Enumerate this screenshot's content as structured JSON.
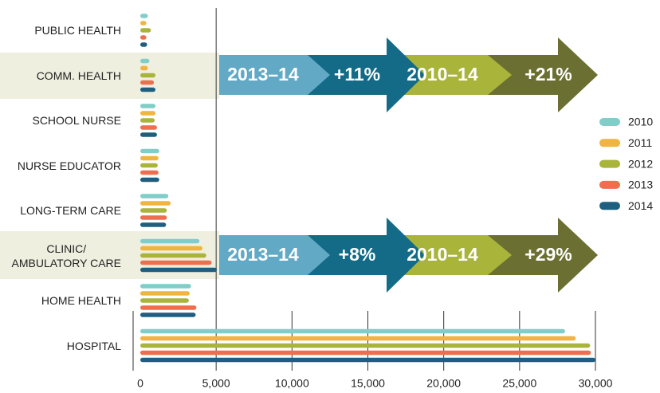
{
  "chart_data": {
    "type": "bar",
    "orientation": "horizontal",
    "categories": [
      "PUBLIC HEALTH",
      "COMM. HEALTH",
      "SCHOOL NURSE",
      "NURSE EDUCATOR",
      "LONG-TERM CARE",
      "CLINIC/\nAMBULATORY CARE",
      "HOME HEALTH",
      "HOSPITAL"
    ],
    "series": [
      {
        "name": "2010",
        "color": "#80cdc9",
        "values": [
          500,
          600,
          1000,
          1250,
          1850,
          3900,
          3350,
          28000
        ]
      },
      {
        "name": "2011",
        "color": "#f0b440",
        "values": [
          400,
          500,
          1000,
          1200,
          2000,
          4100,
          3250,
          28700
        ]
      },
      {
        "name": "2012",
        "color": "#a9b43a",
        "values": [
          700,
          1000,
          950,
          1150,
          1750,
          4350,
          3200,
          29650
        ]
      },
      {
        "name": "2013",
        "color": "#ee6e4e",
        "values": [
          400,
          900,
          1100,
          1200,
          1750,
          4700,
          3700,
          29700
        ]
      },
      {
        "name": "2014",
        "color": "#1e5f80",
        "values": [
          450,
          1000,
          1100,
          1250,
          1700,
          5050,
          3650,
          30000
        ]
      }
    ],
    "xlim": [
      0,
      30000
    ],
    "xticks": [
      0,
      {
        "value": 5000,
        "label": "5,000"
      },
      {
        "value": 10000,
        "label": "10,000"
      },
      {
        "value": 15000,
        "label": "15,000"
      },
      {
        "value": 20000,
        "label": "20,000"
      },
      {
        "value": 25000,
        "label": "25,000"
      },
      {
        "value": 30000,
        "label": "30,000"
      }
    ],
    "legend": "right",
    "annotations": [
      {
        "labels": [
          "2013–14",
          "+11%",
          "2010–14",
          "+21%"
        ]
      },
      {
        "labels": [
          "2013–14",
          "+8%",
          "2010–14",
          "+29%"
        ]
      }
    ]
  }
}
